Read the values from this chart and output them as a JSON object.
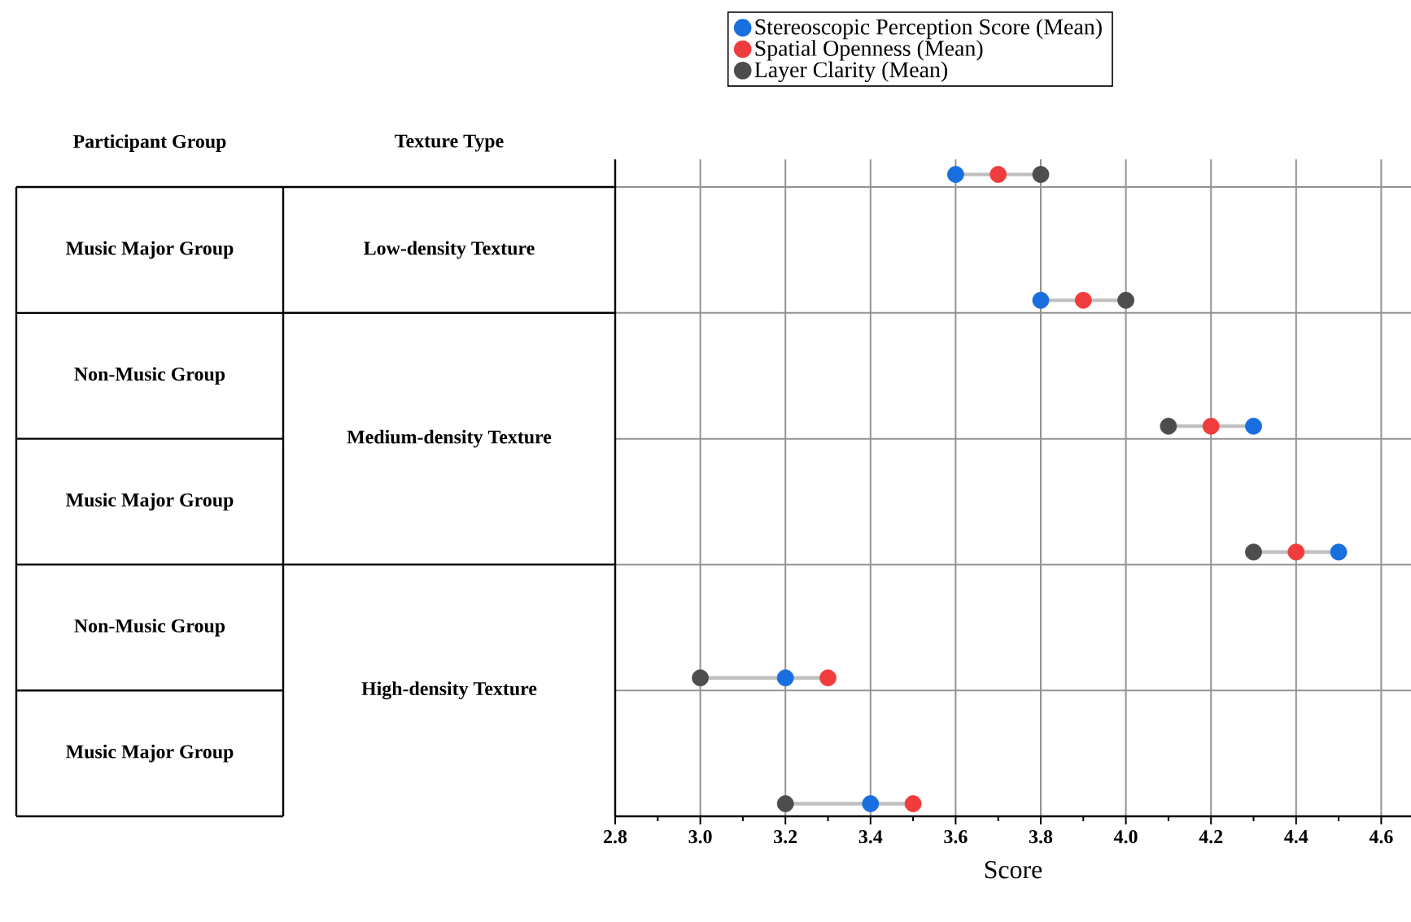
{
  "chart_data": {
    "type": "scatter",
    "orientation": "horizontal",
    "xlabel": "Score",
    "categories": [
      null,
      null,
      null,
      null,
      null,
      null
    ],
    "series": [
      {
        "name": "Stereoscopic Perception Score (Mean)",
        "color": "#1a6fe0",
        "values": [
          3.6,
          3.8,
          4.3,
          4.5,
          3.2,
          3.4
        ]
      },
      {
        "name": "Spatial Openness (Mean)",
        "color": "#f03c3c",
        "values": [
          3.7,
          3.9,
          4.2,
          4.4,
          3.3,
          3.5
        ]
      },
      {
        "name": "Layer Clarity (Mean)",
        "color": "#4d4d4d",
        "values": [
          3.8,
          4.0,
          4.1,
          4.3,
          3.0,
          3.2
        ]
      }
    ],
    "xlim": [
      2.8,
      4.67
    ],
    "xticks": [
      2.8,
      {
        "value": 3,
        "label": "3.0"
      },
      3.2,
      3.4,
      3.6,
      3.8,
      {
        "value": 4,
        "label": "4.0"
      },
      4.2,
      4.4,
      4.6
    ],
    "grid": true,
    "legend": "top",
    "tick_labels": "x",
    "annotations": [
      "Participant Group",
      "Texture Type",
      "Music Major Group",
      "Non-Music Group",
      "Music Major Group",
      "Non-Music Group",
      "Music Major Group",
      "Low-density Texture",
      "Medium-density Texture",
      "High-density Texture"
    ]
  }
}
